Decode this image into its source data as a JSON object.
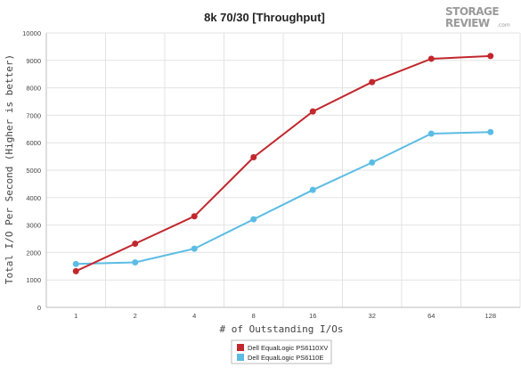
{
  "logo": {
    "line1": "STORAGE",
    "line2": "REVIEW",
    "suffix": ".com"
  },
  "chart_data": {
    "type": "line",
    "title": "8k 70/30 [Throughput]",
    "xlabel": "# of Outstanding I/Os",
    "ylabel": "Total I/O Per Second (Higher is better)",
    "categories": [
      "1",
      "2",
      "4",
      "8",
      "16",
      "32",
      "64",
      "128"
    ],
    "ylim": [
      0,
      10000
    ],
    "yticks": [
      "0",
      "1000",
      "2000",
      "3000",
      "4000",
      "5000",
      "6000",
      "7000",
      "8000",
      "9000",
      "10000"
    ],
    "grid": true,
    "legend_position": "bottom-center",
    "series": [
      {
        "name": "Dell EqualLogic PS6110XV",
        "color": "#c1272d",
        "values": [
          1320,
          2320,
          3320,
          5470,
          7140,
          8210,
          9060,
          9160
        ]
      },
      {
        "name": "Dell EqualLogic PS6110E",
        "color": "#5bbce4",
        "values": [
          1580,
          1640,
          2140,
          3210,
          4280,
          5280,
          6330,
          6390
        ]
      }
    ]
  }
}
